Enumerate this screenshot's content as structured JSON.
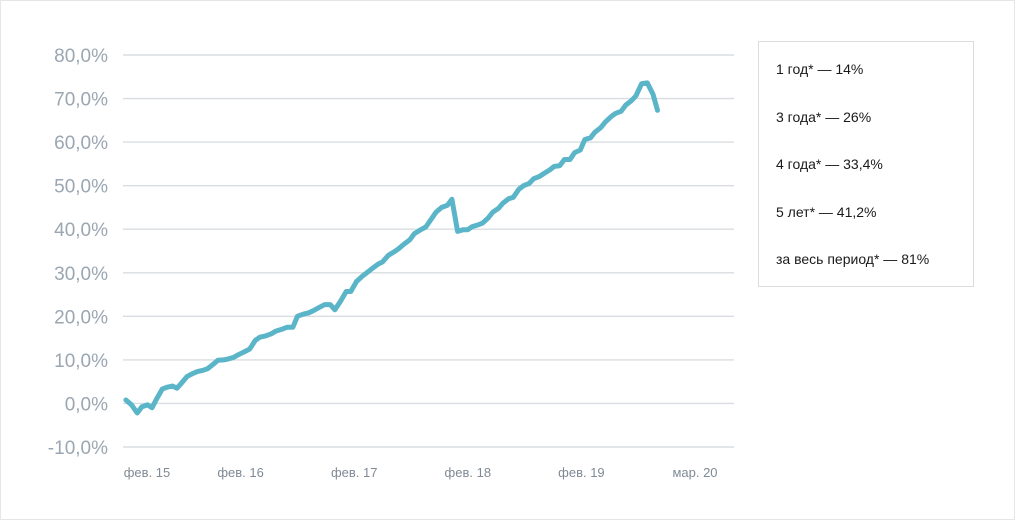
{
  "chart_data": {
    "type": "line",
    "title": "",
    "xlabel": "",
    "ylabel": "",
    "ylim": [
      -10,
      80
    ],
    "yticks": [
      80,
      70,
      60,
      50,
      40,
      30,
      20,
      10,
      0,
      -10
    ],
    "ytick_labels": [
      "80,0%",
      "70,0%",
      "60,0%",
      "50,0%",
      "40,0%",
      "30,0%",
      "20,0%",
      "10,0%",
      "0,0%",
      "-10,0%"
    ],
    "xticks": [
      {
        "x": 2015.0,
        "label": "фев. 15"
      },
      {
        "x": 2016.0,
        "label": "фев. 16"
      },
      {
        "x": 2017.0,
        "label": "фев. 17"
      },
      {
        "x": 2018.0,
        "label": "фев. 18"
      },
      {
        "x": 2019.0,
        "label": "фев. 19"
      },
      {
        "x": 2020.0,
        "label": "мар. 20"
      }
    ],
    "xlim": [
      2015.0,
      2020.1
    ],
    "grid": true,
    "series": [
      {
        "name": "",
        "color": "#5bb5c9",
        "points": [
          [
            2014.99,
            0.8
          ],
          [
            2015.04,
            -0.3
          ],
          [
            2015.09,
            -2.2
          ],
          [
            2015.13,
            -0.8
          ],
          [
            2015.18,
            -0.3
          ],
          [
            2015.22,
            -1.0
          ],
          [
            2015.26,
            1.0
          ],
          [
            2015.31,
            3.3
          ],
          [
            2015.35,
            3.7
          ],
          [
            2015.4,
            4.0
          ],
          [
            2015.44,
            3.5
          ],
          [
            2015.49,
            5.0
          ],
          [
            2015.53,
            6.2
          ],
          [
            2015.58,
            6.9
          ],
          [
            2015.62,
            7.3
          ],
          [
            2015.67,
            7.6
          ],
          [
            2015.71,
            8.0
          ],
          [
            2015.76,
            9.0
          ],
          [
            2015.8,
            9.9
          ],
          [
            2015.85,
            10.0
          ],
          [
            2015.89,
            10.2
          ],
          [
            2015.94,
            10.6
          ],
          [
            2015.98,
            11.2
          ],
          [
            2016.03,
            11.8
          ],
          [
            2016.08,
            12.5
          ],
          [
            2016.13,
            14.5
          ],
          [
            2016.17,
            15.2
          ],
          [
            2016.22,
            15.5
          ],
          [
            2016.27,
            16.0
          ],
          [
            2016.31,
            16.6
          ],
          [
            2016.36,
            17.0
          ],
          [
            2016.41,
            17.5
          ],
          [
            2016.46,
            17.5
          ],
          [
            2016.5,
            20.0
          ],
          [
            2016.55,
            20.5
          ],
          [
            2016.6,
            20.8
          ],
          [
            2016.64,
            21.3
          ],
          [
            2016.69,
            22.0
          ],
          [
            2016.74,
            22.7
          ],
          [
            2016.79,
            22.7
          ],
          [
            2016.83,
            21.5
          ],
          [
            2016.88,
            23.5
          ],
          [
            2016.93,
            25.7
          ],
          [
            2016.97,
            25.7
          ],
          [
            2017.02,
            28.0
          ],
          [
            2017.07,
            29.2
          ],
          [
            2017.11,
            30.0
          ],
          [
            2017.16,
            31.0
          ],
          [
            2017.21,
            32.0
          ],
          [
            2017.25,
            32.5
          ],
          [
            2017.3,
            34.0
          ],
          [
            2017.35,
            34.8
          ],
          [
            2017.39,
            35.5
          ],
          [
            2017.44,
            36.6
          ],
          [
            2017.49,
            37.6
          ],
          [
            2017.53,
            39.0
          ],
          [
            2017.58,
            39.8
          ],
          [
            2017.63,
            40.5
          ],
          [
            2017.67,
            42.0
          ],
          [
            2017.72,
            43.9
          ],
          [
            2017.77,
            45.0
          ],
          [
            2017.82,
            45.5
          ],
          [
            2017.86,
            46.9
          ],
          [
            2017.91,
            39.5
          ],
          [
            2017.96,
            39.9
          ],
          [
            2018.0,
            39.9
          ],
          [
            2018.04,
            40.6
          ],
          [
            2018.09,
            41.0
          ],
          [
            2018.13,
            41.4
          ],
          [
            2018.18,
            42.6
          ],
          [
            2018.22,
            43.9
          ],
          [
            2018.27,
            44.8
          ],
          [
            2018.31,
            46.0
          ],
          [
            2018.36,
            47.0
          ],
          [
            2018.4,
            47.3
          ],
          [
            2018.45,
            49.2
          ],
          [
            2018.49,
            50.0
          ],
          [
            2018.54,
            50.5
          ],
          [
            2018.58,
            51.6
          ],
          [
            2018.63,
            52.1
          ],
          [
            2018.67,
            52.8
          ],
          [
            2018.72,
            53.6
          ],
          [
            2018.76,
            54.4
          ],
          [
            2018.81,
            54.6
          ],
          [
            2018.85,
            56.0
          ],
          [
            2018.9,
            56.0
          ],
          [
            2018.94,
            57.6
          ],
          [
            2018.99,
            58.2
          ],
          [
            2019.03,
            60.6
          ],
          [
            2019.08,
            61.0
          ],
          [
            2019.12,
            62.3
          ],
          [
            2019.17,
            63.3
          ],
          [
            2019.21,
            64.6
          ],
          [
            2019.26,
            65.8
          ],
          [
            2019.3,
            66.6
          ],
          [
            2019.35,
            67.1
          ],
          [
            2019.39,
            68.5
          ],
          [
            2019.44,
            69.5
          ],
          [
            2019.48,
            70.6
          ],
          [
            2019.53,
            73.4
          ],
          [
            2019.58,
            73.6
          ],
          [
            2019.63,
            71.0
          ],
          [
            2019.67,
            67.3
          ]
        ]
      }
    ]
  },
  "legend": {
    "items": [
      "1 год* — 14%",
      "3 года* — 26%",
      "4 года* — 33,4%",
      "5 лет* — 41,2%",
      "за весь период* — 81%"
    ]
  }
}
